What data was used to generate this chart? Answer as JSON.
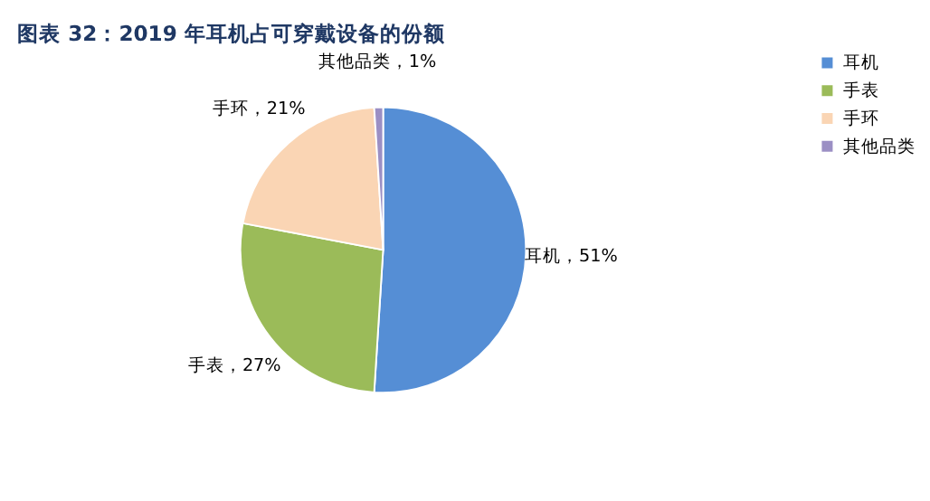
{
  "chart_data": {
    "type": "pie",
    "title": "图表 32：2019 年耳机占可穿戴设备的份额",
    "categories": [
      "耳机",
      "手表",
      "手环",
      "其他品类"
    ],
    "values": [
      51,
      27,
      21,
      1
    ],
    "colors": [
      "#558ed5",
      "#9bbb59",
      "#fad5b4",
      "#9b8fc4"
    ],
    "value_labels": [
      "耳机，51%",
      "手表，27%",
      "手环，21%",
      "其他品类，1%"
    ],
    "legend": "right"
  }
}
